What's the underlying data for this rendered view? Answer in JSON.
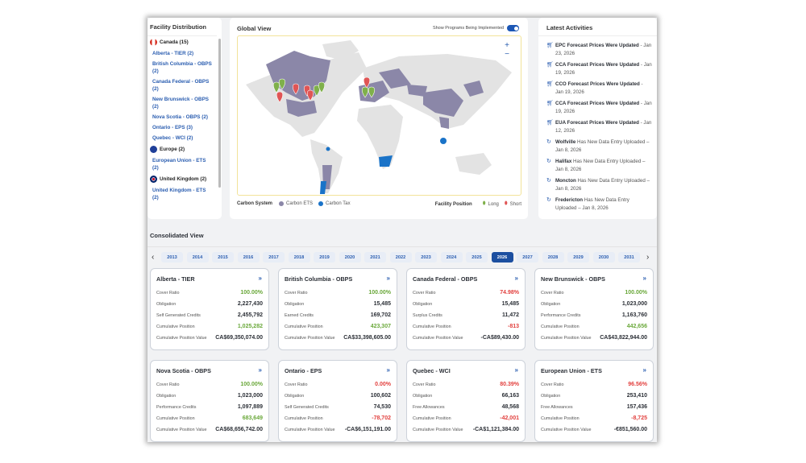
{
  "sidebar": {
    "title": "Facility Distribution",
    "groups": [
      {
        "label": "Canada (15)",
        "flag": "canada-flag",
        "items": [
          "Alberta - TIER (2)",
          "British Columbia - OBPS (2)",
          "Canada Federal - OBPS (2)",
          "New Brunswick - OBPS (2)",
          "Nova Scotia - OBPS (2)",
          "Ontario - EPS (3)",
          "Quebec - WCI (2)"
        ]
      },
      {
        "label": "Europe (2)",
        "flag": "eu-flag",
        "items": [
          "European Union - ETS (2)"
        ]
      },
      {
        "label": "United Kingdom (2)",
        "flag": "uk-flag",
        "items": [
          "United Kingdom - ETS (2)"
        ]
      }
    ]
  },
  "map": {
    "title": "Global View",
    "toggle_label": "Show Programs Being Implemented",
    "toggle_on": true,
    "zoom_in": "+",
    "zoom_out": "−",
    "legend": {
      "system_label": "Carbon System",
      "ets": "Carbon ETS",
      "tax": "Carbon Tax",
      "position_label": "Facility Position",
      "long": "Long",
      "short": "Short"
    },
    "colors": {
      "ets": "#8b87a8",
      "tax": "#1a73c8",
      "long": "#7fb04a",
      "short": "#e05555",
      "land": "#e3e3e3"
    }
  },
  "activities": {
    "title": "Latest Activities",
    "items": [
      {
        "icon": "cart-icon",
        "bold": "EPC Forecast Prices Were Updated",
        "rest": " - Jan 23, 2026"
      },
      {
        "icon": "cart-icon",
        "bold": "CCA Forecast Prices Were Updated",
        "rest": " - Jan 19, 2026"
      },
      {
        "icon": "cart-icon",
        "bold": "CCO Forecast Prices Were Updated",
        "rest": " - Jan 19, 2026"
      },
      {
        "icon": "cart-icon",
        "bold": "CCA Forecast Prices Were Updated",
        "rest": " - Jan 19, 2026"
      },
      {
        "icon": "cart-icon",
        "bold": "EUA Forecast Prices Were Updated",
        "rest": " - Jan 12, 2026"
      },
      {
        "icon": "history-icon",
        "bold": "Wolfville",
        "rest": " Has New Data Entry Uploaded – Jan 8, 2026"
      },
      {
        "icon": "history-icon",
        "bold": "Halifax",
        "rest": " Has New Data Entry Uploaded – Jan 8, 2026"
      },
      {
        "icon": "history-icon",
        "bold": "Moncton",
        "rest": " Has New Data Entry Uploaded – Jan 8, 2026"
      },
      {
        "icon": "history-icon",
        "bold": "Fredericton",
        "rest": " Has New Data Entry Uploaded – Jan 8, 2026"
      }
    ]
  },
  "consolidated": {
    "title": "Consolidated View",
    "years": [
      "2013",
      "2014",
      "2015",
      "2016",
      "2017",
      "2018",
      "2019",
      "2020",
      "2021",
      "2022",
      "2023",
      "2024",
      "2025",
      "2026",
      "2027",
      "2028",
      "2029",
      "2030",
      "2031"
    ],
    "selected_year": "2026",
    "cards": [
      {
        "title": "Alberta - TIER",
        "rows": [
          [
            "Cover Ratio",
            "100.00%",
            "green"
          ],
          [
            "Obligation",
            "2,227,430",
            ""
          ],
          [
            "Self Generated Credits",
            "2,455,792",
            ""
          ],
          [
            "Cumulative Position",
            "1,025,282",
            "green"
          ],
          [
            "Cumulative Position Value",
            "CA$69,350,074.00",
            ""
          ]
        ]
      },
      {
        "title": "British Columbia - OBPS",
        "rows": [
          [
            "Cover Ratio",
            "100.00%",
            "green"
          ],
          [
            "Obligation",
            "15,485",
            ""
          ],
          [
            "Earned Credits",
            "169,702",
            ""
          ],
          [
            "Cumulative Position",
            "423,307",
            "green"
          ],
          [
            "Cumulative Position Value",
            "CA$33,398,605.00",
            ""
          ]
        ]
      },
      {
        "title": "Canada Federal - OBPS",
        "rows": [
          [
            "Cover Ratio",
            "74.98%",
            "red"
          ],
          [
            "Obligation",
            "15,485",
            ""
          ],
          [
            "Surplus Credits",
            "11,472",
            ""
          ],
          [
            "Cumulative Position",
            "-813",
            "red"
          ],
          [
            "Cumulative Position Value",
            "-CA$89,430.00",
            ""
          ]
        ]
      },
      {
        "title": "New Brunswick - OBPS",
        "rows": [
          [
            "Cover Ratio",
            "100.00%",
            "green"
          ],
          [
            "Obligation",
            "1,023,000",
            ""
          ],
          [
            "Performance Credits",
            "1,163,760",
            ""
          ],
          [
            "Cumulative Position",
            "442,656",
            "green"
          ],
          [
            "Cumulative Position Value",
            "CA$43,822,944.00",
            ""
          ]
        ]
      },
      {
        "title": "Nova Scotia - OBPS",
        "rows": [
          [
            "Cover Ratio",
            "100.00%",
            "green"
          ],
          [
            "Obligation",
            "1,023,000",
            ""
          ],
          [
            "Performance Credits",
            "1,097,889",
            ""
          ],
          [
            "Cumulative Position",
            "683,649",
            "green"
          ],
          [
            "Cumulative Position Value",
            "CA$68,656,742.00",
            ""
          ]
        ]
      },
      {
        "title": "Ontario - EPS",
        "rows": [
          [
            "Cover Ratio",
            "0.00%",
            "red"
          ],
          [
            "Obligation",
            "100,602",
            ""
          ],
          [
            "Self Generated Credits",
            "74,530",
            ""
          ],
          [
            "Cumulative Position",
            "-78,702",
            "red"
          ],
          [
            "Cumulative Position Value",
            "-CA$6,151,191.00",
            ""
          ]
        ]
      },
      {
        "title": "Quebec - WCI",
        "rows": [
          [
            "Cover Ratio",
            "80.39%",
            "red"
          ],
          [
            "Obligation",
            "66,163",
            ""
          ],
          [
            "Free Allowances",
            "48,568",
            ""
          ],
          [
            "Cumulative Position",
            "-42,001",
            "red"
          ],
          [
            "Cumulative Position Value",
            "-CA$1,121,384.00",
            ""
          ]
        ]
      },
      {
        "title": "European Union - ETS",
        "rows": [
          [
            "Cover Ratio",
            "96.56%",
            "red"
          ],
          [
            "Obligation",
            "253,410",
            ""
          ],
          [
            "Free Allowances",
            "157,436",
            ""
          ],
          [
            "Cumulative Position",
            "-8,725",
            "red"
          ],
          [
            "Cumulative Position Value",
            "-€851,560.00",
            ""
          ]
        ]
      }
    ]
  }
}
